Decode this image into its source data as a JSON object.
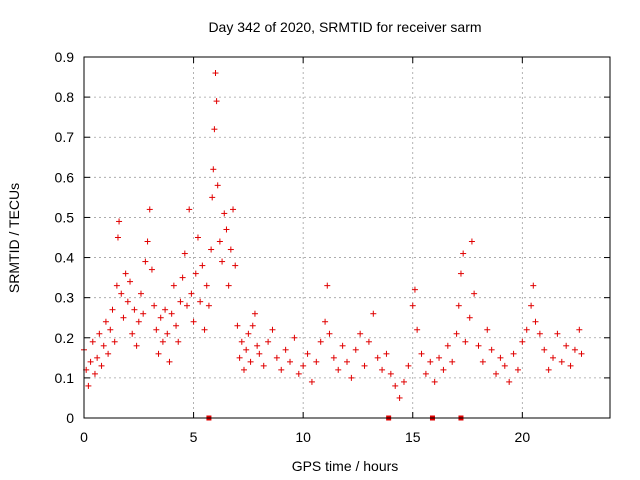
{
  "chart_data": {
    "type": "scatter",
    "title": "Day 342 of 2020, SRMTID for receiver sarm",
    "xlabel": "GPS time / hours",
    "ylabel": "SRMTID / TECUs",
    "xlim": [
      0,
      24
    ],
    "ylim": [
      0,
      0.9
    ],
    "x_ticks": [
      0,
      5,
      10,
      15,
      20
    ],
    "x_tick_labels": [
      "0",
      "5",
      "10",
      "15",
      "20"
    ],
    "y_ticks": [
      0,
      0.1,
      0.2,
      0.3,
      0.4,
      0.5,
      0.6,
      0.7,
      0.8,
      0.9
    ],
    "y_tick_labels": [
      "0",
      "0.1",
      "0.2",
      "0.3",
      "0.4",
      "0.5",
      "0.6",
      "0.7",
      "0.8",
      "0.9"
    ],
    "grid": true,
    "marker": "plus",
    "color": "#e00000",
    "series": [
      {
        "name": "SRMTID",
        "points": [
          [
            0.0,
            0.17
          ],
          [
            0.1,
            0.12
          ],
          [
            0.2,
            0.08
          ],
          [
            0.3,
            0.14
          ],
          [
            0.4,
            0.19
          ],
          [
            0.5,
            0.11
          ],
          [
            0.6,
            0.15
          ],
          [
            0.7,
            0.21
          ],
          [
            0.8,
            0.13
          ],
          [
            0.9,
            0.18
          ],
          [
            1.0,
            0.24
          ],
          [
            1.1,
            0.16
          ],
          [
            1.2,
            0.22
          ],
          [
            1.3,
            0.27
          ],
          [
            1.4,
            0.19
          ],
          [
            1.5,
            0.33
          ],
          [
            1.55,
            0.45
          ],
          [
            1.6,
            0.49
          ],
          [
            1.7,
            0.31
          ],
          [
            1.8,
            0.25
          ],
          [
            1.9,
            0.36
          ],
          [
            2.0,
            0.29
          ],
          [
            2.1,
            0.34
          ],
          [
            2.2,
            0.21
          ],
          [
            2.3,
            0.27
          ],
          [
            2.4,
            0.18
          ],
          [
            2.5,
            0.24
          ],
          [
            2.6,
            0.31
          ],
          [
            2.7,
            0.26
          ],
          [
            2.8,
            0.39
          ],
          [
            2.9,
            0.44
          ],
          [
            3.0,
            0.52
          ],
          [
            3.1,
            0.37
          ],
          [
            3.2,
            0.28
          ],
          [
            3.3,
            0.22
          ],
          [
            3.4,
            0.16
          ],
          [
            3.5,
            0.25
          ],
          [
            3.6,
            0.19
          ],
          [
            3.7,
            0.27
          ],
          [
            3.8,
            0.21
          ],
          [
            3.9,
            0.14
          ],
          [
            4.0,
            0.26
          ],
          [
            4.1,
            0.33
          ],
          [
            4.2,
            0.23
          ],
          [
            4.3,
            0.19
          ],
          [
            4.4,
            0.29
          ],
          [
            4.5,
            0.35
          ],
          [
            4.6,
            0.41
          ],
          [
            4.7,
            0.28
          ],
          [
            4.8,
            0.52
          ],
          [
            4.9,
            0.31
          ],
          [
            5.0,
            0.24
          ],
          [
            5.1,
            0.36
          ],
          [
            5.2,
            0.45
          ],
          [
            5.3,
            0.29
          ],
          [
            5.4,
            0.38
          ],
          [
            5.5,
            0.22
          ],
          [
            5.6,
            0.33
          ],
          [
            5.7,
            0.28
          ],
          [
            5.8,
            0.42
          ],
          [
            5.85,
            0.55
          ],
          [
            5.9,
            0.62
          ],
          [
            5.95,
            0.72
          ],
          [
            6.0,
            0.86
          ],
          [
            6.05,
            0.79
          ],
          [
            6.1,
            0.58
          ],
          [
            6.2,
            0.44
          ],
          [
            6.3,
            0.39
          ],
          [
            6.4,
            0.51
          ],
          [
            6.5,
            0.47
          ],
          [
            6.6,
            0.33
          ],
          [
            6.7,
            0.42
          ],
          [
            6.8,
            0.52
          ],
          [
            6.9,
            0.38
          ],
          [
            7.0,
            0.23
          ],
          [
            7.1,
            0.15
          ],
          [
            7.2,
            0.19
          ],
          [
            7.3,
            0.12
          ],
          [
            7.4,
            0.17
          ],
          [
            7.5,
            0.21
          ],
          [
            7.6,
            0.14
          ],
          [
            7.7,
            0.23
          ],
          [
            7.8,
            0.26
          ],
          [
            7.9,
            0.18
          ],
          [
            8.0,
            0.16
          ],
          [
            8.2,
            0.13
          ],
          [
            8.4,
            0.19
          ],
          [
            8.6,
            0.22
          ],
          [
            8.8,
            0.15
          ],
          [
            9.0,
            0.12
          ],
          [
            9.2,
            0.17
          ],
          [
            9.4,
            0.14
          ],
          [
            9.6,
            0.2
          ],
          [
            9.8,
            0.11
          ],
          [
            10.0,
            0.13
          ],
          [
            10.2,
            0.16
          ],
          [
            10.4,
            0.09
          ],
          [
            10.6,
            0.14
          ],
          [
            10.8,
            0.19
          ],
          [
            11.0,
            0.24
          ],
          [
            11.1,
            0.33
          ],
          [
            11.2,
            0.21
          ],
          [
            11.4,
            0.15
          ],
          [
            11.6,
            0.12
          ],
          [
            11.8,
            0.18
          ],
          [
            12.0,
            0.14
          ],
          [
            12.2,
            0.1
          ],
          [
            12.4,
            0.17
          ],
          [
            12.6,
            0.21
          ],
          [
            12.8,
            0.13
          ],
          [
            13.0,
            0.19
          ],
          [
            13.2,
            0.26
          ],
          [
            13.4,
            0.15
          ],
          [
            13.6,
            0.12
          ],
          [
            13.8,
            0.16
          ],
          [
            14.0,
            0.11
          ],
          [
            14.2,
            0.08
          ],
          [
            14.4,
            0.05
          ],
          [
            14.6,
            0.09
          ],
          [
            14.8,
            0.13
          ],
          [
            15.0,
            0.28
          ],
          [
            15.1,
            0.32
          ],
          [
            15.2,
            0.22
          ],
          [
            15.4,
            0.16
          ],
          [
            15.6,
            0.11
          ],
          [
            15.8,
            0.14
          ],
          [
            16.0,
            0.09
          ],
          [
            16.2,
            0.15
          ],
          [
            16.4,
            0.12
          ],
          [
            16.6,
            0.18
          ],
          [
            16.8,
            0.14
          ],
          [
            17.0,
            0.21
          ],
          [
            17.1,
            0.28
          ],
          [
            17.2,
            0.36
          ],
          [
            17.3,
            0.41
          ],
          [
            17.4,
            0.19
          ],
          [
            17.6,
            0.25
          ],
          [
            17.7,
            0.44
          ],
          [
            17.8,
            0.31
          ],
          [
            18.0,
            0.18
          ],
          [
            18.2,
            0.14
          ],
          [
            18.4,
            0.22
          ],
          [
            18.6,
            0.17
          ],
          [
            18.8,
            0.11
          ],
          [
            19.0,
            0.15
          ],
          [
            19.2,
            0.13
          ],
          [
            19.4,
            0.09
          ],
          [
            19.6,
            0.16
          ],
          [
            19.8,
            0.12
          ],
          [
            20.0,
            0.19
          ],
          [
            20.2,
            0.22
          ],
          [
            20.4,
            0.28
          ],
          [
            20.5,
            0.33
          ],
          [
            20.6,
            0.24
          ],
          [
            20.8,
            0.21
          ],
          [
            21.0,
            0.17
          ],
          [
            21.2,
            0.12
          ],
          [
            21.4,
            0.15
          ],
          [
            21.6,
            0.21
          ],
          [
            21.8,
            0.14
          ],
          [
            22.0,
            0.18
          ],
          [
            22.2,
            0.13
          ],
          [
            22.4,
            0.17
          ],
          [
            22.6,
            0.22
          ],
          [
            22.7,
            0.16
          ]
        ]
      }
    ],
    "flagged_x": [
      5.7,
      13.9,
      15.9,
      17.2
    ]
  }
}
